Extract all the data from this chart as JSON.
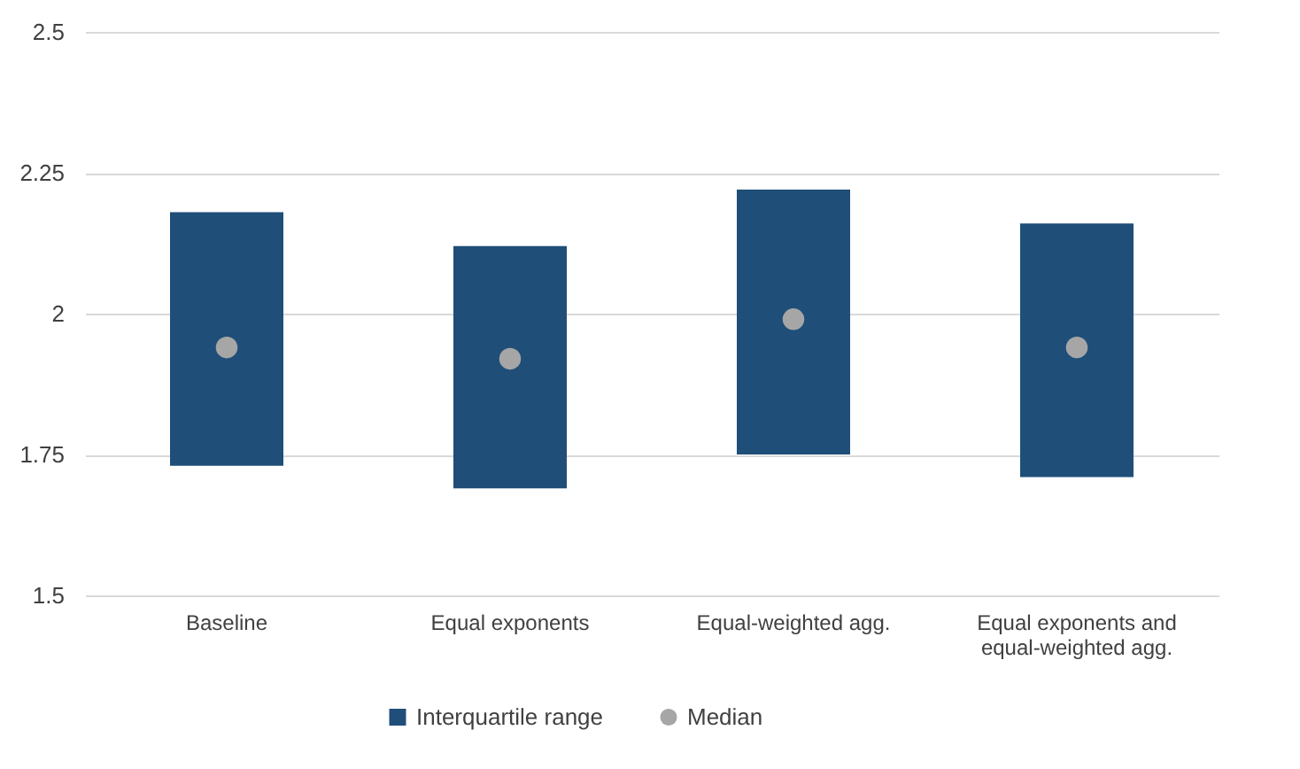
{
  "chart_data": {
    "type": "bar",
    "categories": [
      "Baseline",
      "Equal exponents",
      "Equal-weighted agg.",
      "Equal exponents and equal-weighted agg."
    ],
    "series": [
      {
        "name": "Interquartile range",
        "type": "bar",
        "color": "#1f4e79",
        "base": [
          1.73,
          1.69,
          1.75,
          1.71
        ],
        "values": [
          0.45,
          0.43,
          0.47,
          0.45
        ]
      },
      {
        "name": "Median",
        "type": "scatter",
        "color": "#a6a6a6",
        "marker": "circle",
        "values": [
          1.94,
          1.92,
          1.99,
          1.94
        ]
      }
    ],
    "ylim": [
      1.5,
      2.5
    ],
    "yticks": [
      1.5,
      1.75,
      2,
      2.25,
      2.5
    ],
    "grid": "y",
    "legend": "bottom"
  }
}
